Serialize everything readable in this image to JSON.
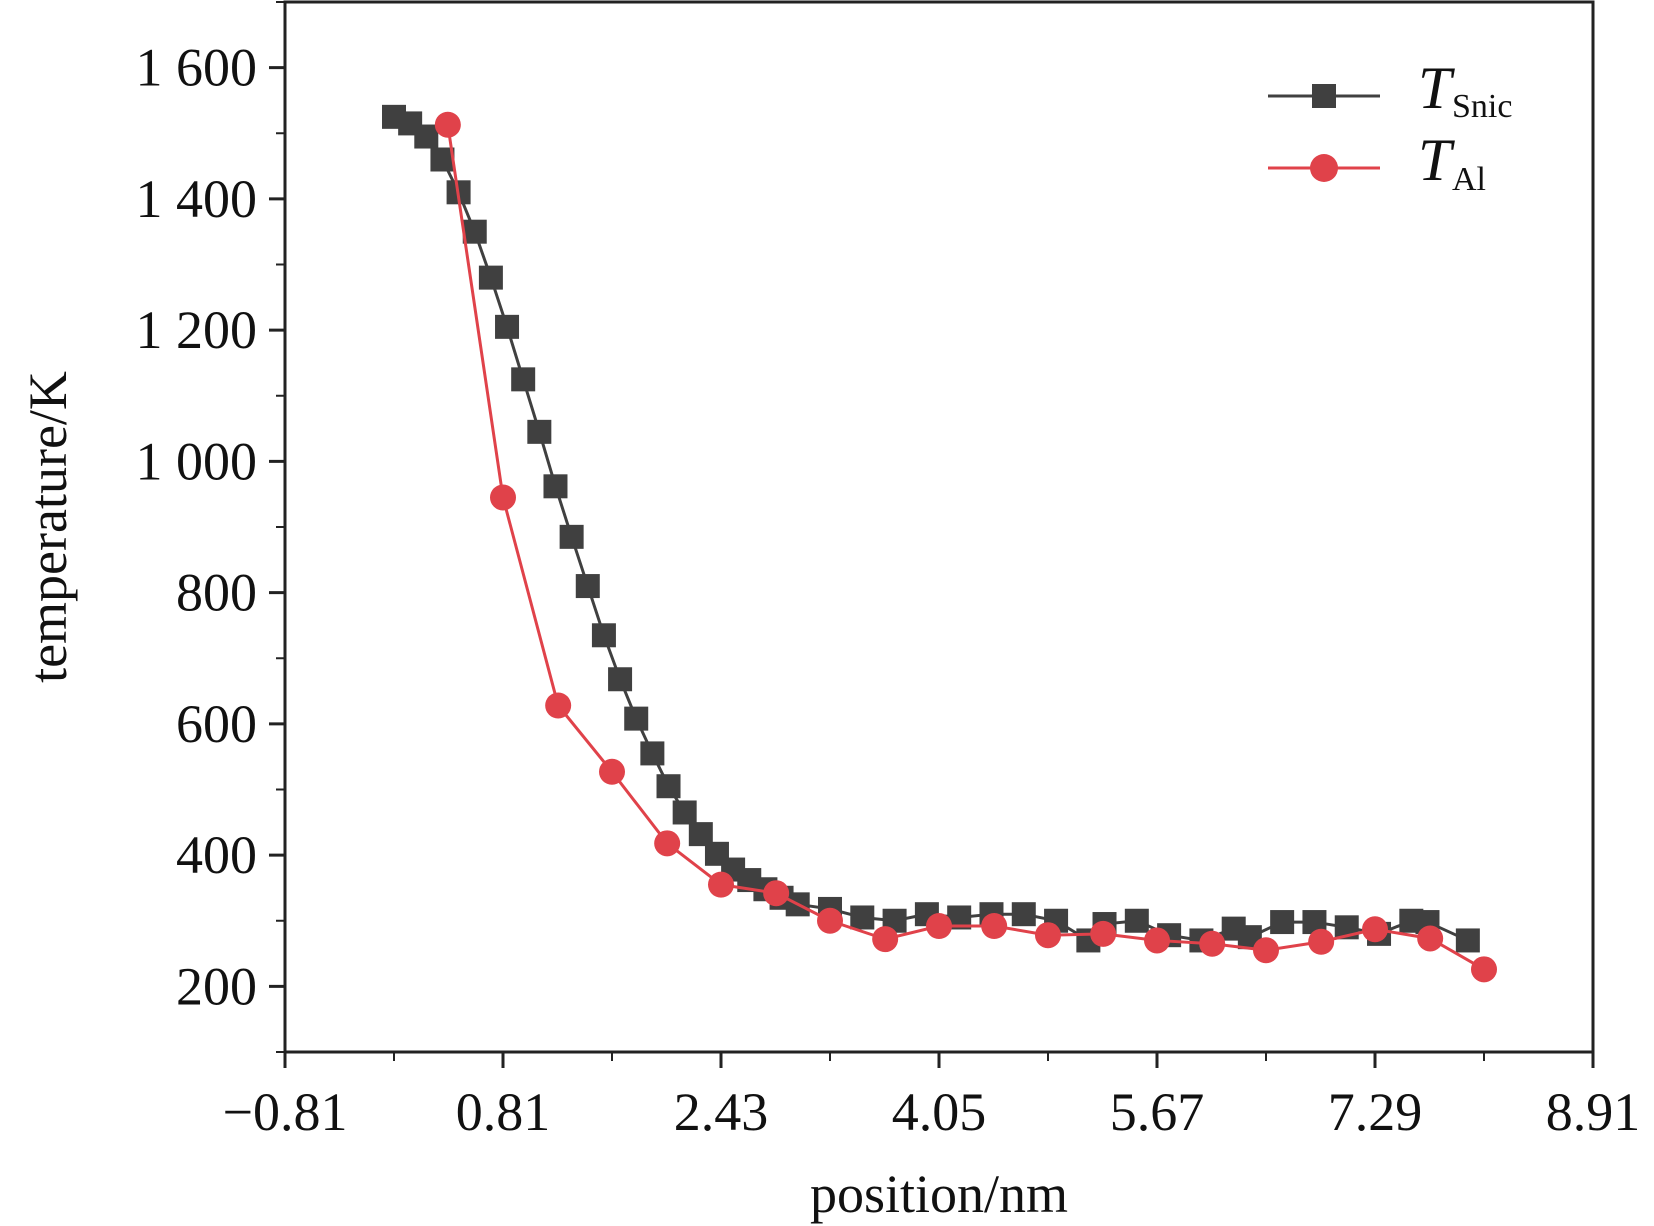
{
  "chart_data": {
    "type": "line",
    "xlabel": "position/nm",
    "ylabel": "temperature/K",
    "xlim": [
      -0.81,
      8.91
    ],
    "ylim": [
      100,
      1700
    ],
    "x_ticks": [
      -0.81,
      0.81,
      2.43,
      4.05,
      5.67,
      7.29,
      8.91
    ],
    "x_tick_labels": [
      "−0.81",
      "0.81",
      "2.43",
      "4.05",
      "5.67",
      "7.29",
      "8.91"
    ],
    "y_ticks": [
      200,
      400,
      600,
      800,
      1000,
      1200,
      1400,
      1600
    ],
    "y_tick_labels": [
      "200",
      "400",
      "600",
      "800",
      "1 000",
      "1 200",
      "1 400",
      "1 600"
    ],
    "legend_position": "top-right",
    "series": [
      {
        "name": "T",
        "name_sub": "Snic",
        "marker": "square",
        "color": "#404040",
        "x": [
          0.0,
          0.12,
          0.24,
          0.36,
          0.48,
          0.6,
          0.72,
          0.84,
          0.96,
          1.08,
          1.2,
          1.32,
          1.44,
          1.56,
          1.68,
          1.8,
          1.92,
          2.04,
          2.16,
          2.28,
          2.4,
          2.52,
          2.64,
          2.76,
          2.88,
          3.0,
          3.24,
          3.48,
          3.72,
          3.96,
          4.2,
          4.44,
          4.68,
          4.92,
          5.16,
          5.28,
          5.52,
          5.76,
          6.0,
          6.24,
          6.36,
          6.6,
          6.84,
          7.08,
          7.32,
          7.56,
          7.68,
          7.98
        ],
        "y": [
          1525,
          1515,
          1495,
          1460,
          1410,
          1350,
          1280,
          1205,
          1125,
          1045,
          962,
          885,
          810,
          735,
          668,
          608,
          555,
          505,
          465,
          432,
          402,
          378,
          362,
          348,
          335,
          325,
          318,
          305,
          300,
          310,
          305,
          310,
          310,
          300,
          270,
          295,
          300,
          278,
          270,
          288,
          275,
          298,
          298,
          290,
          280,
          300,
          298,
          270
        ]
      },
      {
        "name": "T",
        "name_sub": "Al",
        "marker": "circle",
        "color": "#e0424a",
        "x": [
          0.4,
          0.81,
          1.22,
          1.62,
          2.03,
          2.43,
          2.84,
          3.24,
          3.65,
          4.05,
          4.46,
          4.86,
          5.27,
          5.67,
          6.08,
          6.48,
          6.89,
          7.29,
          7.7,
          8.1
        ],
        "y": [
          1513,
          945,
          628,
          527,
          418,
          355,
          342,
          300,
          272,
          292,
          292,
          278,
          280,
          270,
          265,
          255,
          268,
          287,
          273,
          226
        ]
      }
    ]
  }
}
